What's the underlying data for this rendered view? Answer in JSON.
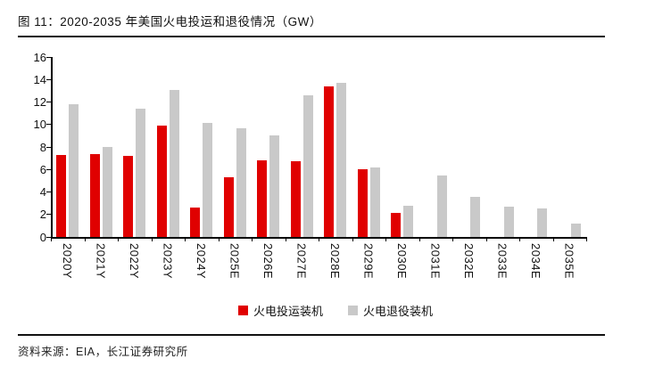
{
  "header": {
    "title": "图 11：2020-2035 年美国火电投运和退役情况（GW）"
  },
  "source": {
    "label": "资料来源：EIA，长江证券研究所"
  },
  "colors": {
    "commission_red": "#e00000",
    "retire_gray": "#c9c9c9",
    "axis_black": "#000000"
  },
  "chart_data": {
    "type": "bar",
    "title": "2020-2035 年美国火电投运和退役情况（GW）",
    "categories": [
      "2020Y",
      "2021Y",
      "2022Y",
      "2023Y",
      "2024Y",
      "2025E",
      "2026E",
      "2027E",
      "2028E",
      "2029E",
      "2030E",
      "2031E",
      "2032E",
      "2033E",
      "2034E",
      "2035E"
    ],
    "series": [
      {
        "name": "火电投运装机",
        "color": "#e00000",
        "values": [
          7.3,
          7.4,
          7.2,
          9.9,
          2.6,
          5.3,
          6.8,
          6.7,
          13.4,
          6.0,
          2.1,
          0,
          0,
          0,
          0,
          0
        ]
      },
      {
        "name": "火电退役装机",
        "color": "#c9c9c9",
        "values": [
          11.8,
          8.0,
          11.4,
          13.1,
          10.1,
          9.7,
          9.0,
          12.6,
          13.7,
          6.2,
          2.8,
          5.5,
          3.6,
          2.7,
          2.5,
          1.2
        ]
      }
    ],
    "xlabel": "",
    "ylabel": "",
    "ylim": [
      0,
      16
    ],
    "ytick_step": 2,
    "ytick_labels": [
      "0",
      "2",
      "4",
      "6",
      "8",
      "10",
      "12",
      "14",
      "16"
    ],
    "grid": false,
    "legend_position": "bottom",
    "xtick_rotation_deg": 90
  }
}
